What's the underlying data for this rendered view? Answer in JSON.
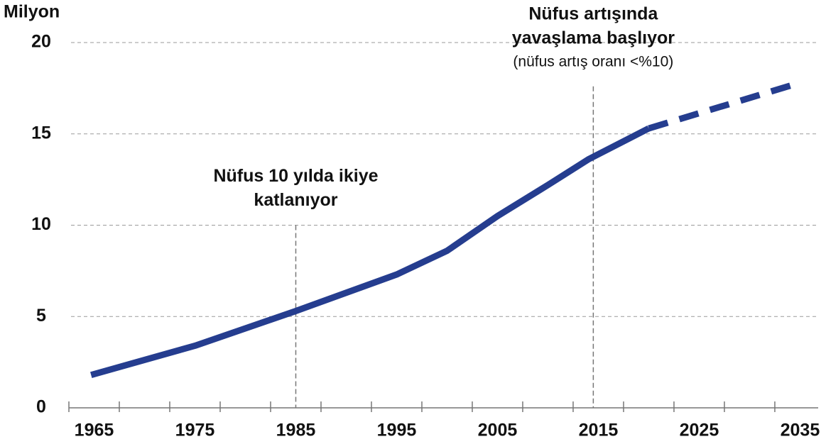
{
  "chart_data": {
    "type": "line",
    "y_label": "Milyon",
    "xlim": [
      1962.5,
      2036.8
    ],
    "xticks": [
      1965,
      1975,
      1985,
      1995,
      2005,
      2015,
      2025,
      2035
    ],
    "xminorticks": [
      1962.5,
      1967.5,
      1972.5,
      1977.5,
      1982.5,
      1987.5,
      1992.5,
      1997.5,
      2002.5,
      2007.5,
      2012.5,
      2017.5,
      2022.5,
      2027.5,
      2032.5
    ],
    "ylim": [
      0,
      20
    ],
    "yticks": [
      0,
      5,
      10,
      15,
      20
    ],
    "grid": true,
    "series": [
      {
        "color": "#253d8f",
        "dashed": false,
        "x": [
          1964.7,
          1975,
          1985,
          1995,
          2000,
          2005,
          2010,
          2014,
          2020
        ],
        "values": [
          1.8,
          3.4,
          5.3,
          7.3,
          8.6,
          10.5,
          12.2,
          13.6,
          15.3
        ]
      },
      {
        "color": "#253d8f",
        "dashed": true,
        "x": [
          2020,
          2035
        ],
        "values": [
          15.3,
          17.8
        ]
      }
    ],
    "annotations": [
      {
        "x": 1985,
        "lines": [
          "Nüfus 10 yılda ikiye",
          "katlanıyor"
        ],
        "top": 10
      },
      {
        "x": 2014.5,
        "lines": [
          "Nüfus artışında",
          "yavaşlama başlıyor"
        ],
        "note": "(nüfus artış oranı <%10)",
        "top": 17.6
      }
    ]
  }
}
